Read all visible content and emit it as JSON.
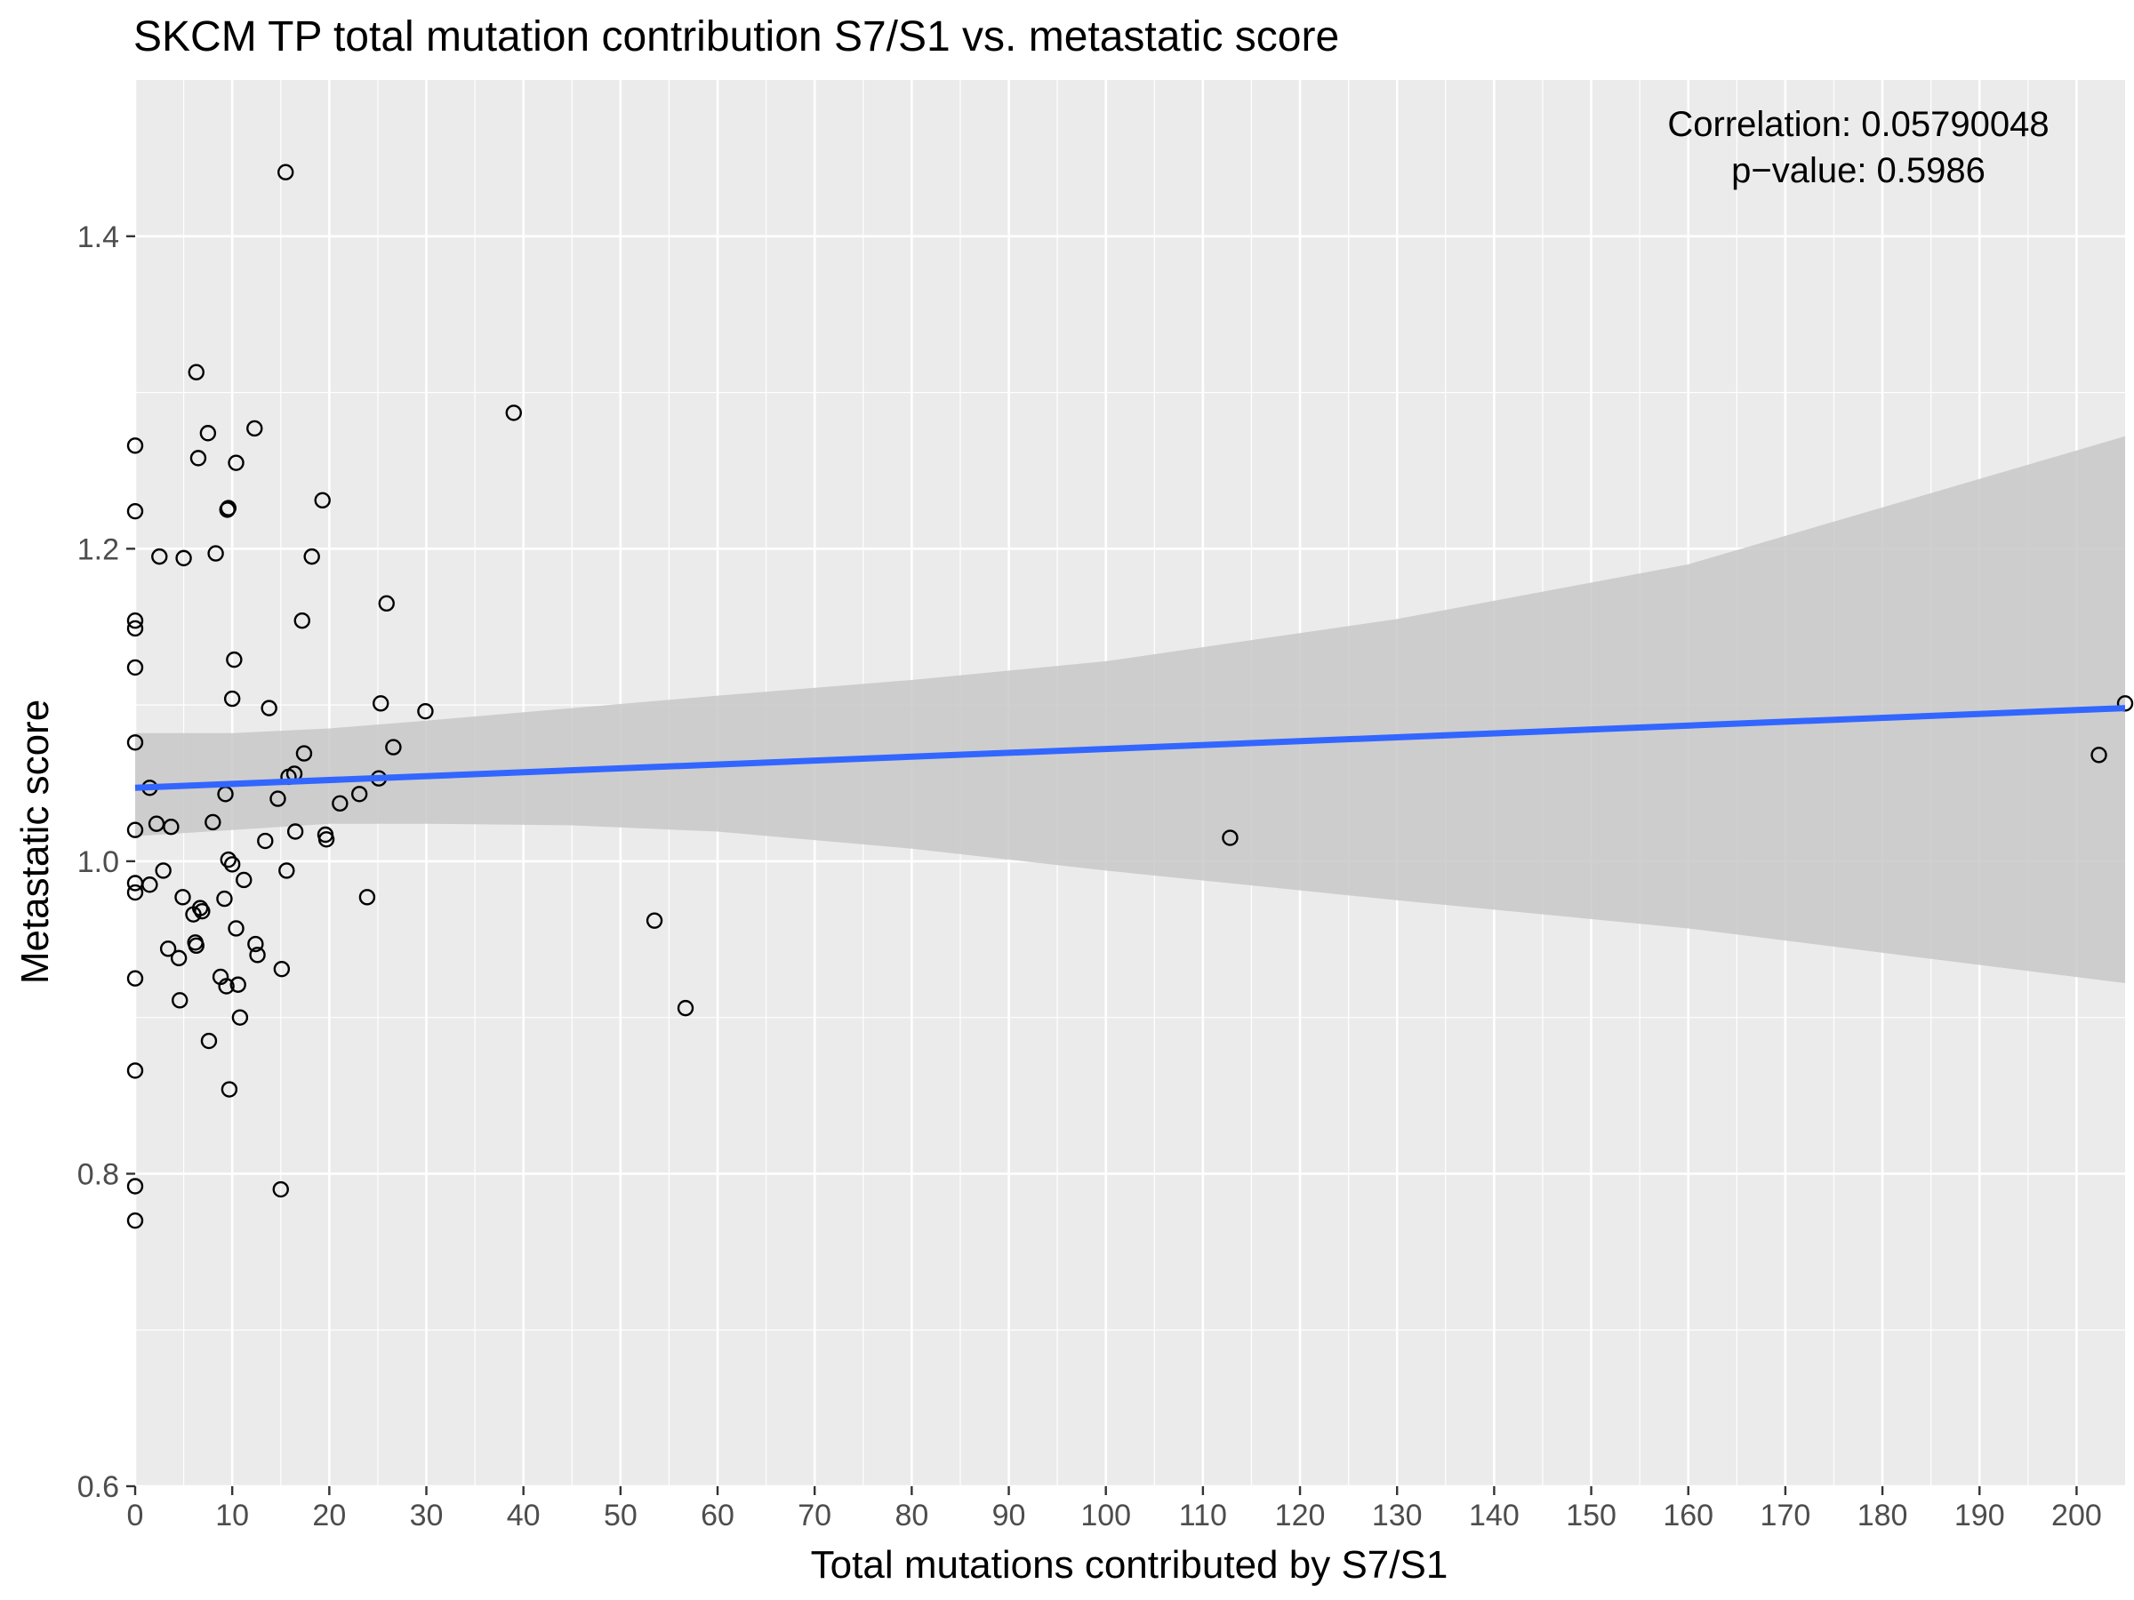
{
  "chart_data": {
    "type": "scatter",
    "title": "SKCM TP total mutation contribution S7/S1 vs. metastatic score",
    "xlabel": "Total mutations contributed by S7/S1",
    "ylabel": "Metastatic score",
    "annotation": [
      "Correlation: 0.05790048",
      "p−value: 0.5986"
    ],
    "xlim": [
      0,
      205
    ],
    "ylim": [
      0.6,
      1.5
    ],
    "x_ticks": [
      0,
      10,
      20,
      30,
      40,
      50,
      60,
      70,
      80,
      90,
      100,
      110,
      120,
      130,
      140,
      150,
      160,
      170,
      180,
      190,
      200
    ],
    "y_ticks": [
      0.6,
      0.8,
      1.0,
      1.2,
      1.4
    ],
    "grid": true,
    "colors": {
      "panel": "#ebebeb",
      "grid": "#ffffff",
      "fit_line": "#3366ff",
      "ribbon": "#c8c8c8",
      "point_stroke": "#000000"
    },
    "fit": {
      "line": [
        [
          0,
          1.047
        ],
        [
          205,
          1.098
        ]
      ],
      "ribbon_upper": [
        [
          0,
          1.082
        ],
        [
          10,
          1.082
        ],
        [
          20,
          1.085
        ],
        [
          30,
          1.09
        ],
        [
          45,
          1.098
        ],
        [
          60,
          1.106
        ],
        [
          80,
          1.116
        ],
        [
          100,
          1.128
        ],
        [
          130,
          1.155
        ],
        [
          160,
          1.19
        ],
        [
          205,
          1.272
        ]
      ],
      "ribbon_lower": [
        [
          0,
          1.016
        ],
        [
          10,
          1.02
        ],
        [
          20,
          1.024
        ],
        [
          30,
          1.024
        ],
        [
          45,
          1.023
        ],
        [
          60,
          1.019
        ],
        [
          80,
          1.008
        ],
        [
          100,
          0.994
        ],
        [
          130,
          0.975
        ],
        [
          160,
          0.957
        ],
        [
          205,
          0.922
        ]
      ]
    },
    "points": [
      {
        "x": 0,
        "y": 1.266
      },
      {
        "x": 0,
        "y": 1.224
      },
      {
        "x": 0,
        "y": 1.154
      },
      {
        "x": 0,
        "y": 1.149
      },
      {
        "x": 0,
        "y": 1.124
      },
      {
        "x": 0,
        "y": 1.076
      },
      {
        "x": 0,
        "y": 1.02
      },
      {
        "x": 0,
        "y": 0.986
      },
      {
        "x": 0,
        "y": 0.98
      },
      {
        "x": 0,
        "y": 0.925
      },
      {
        "x": 0,
        "y": 0.866
      },
      {
        "x": 0,
        "y": 0.792
      },
      {
        "x": 0,
        "y": 0.77
      },
      {
        "x": 1.5,
        "y": 1.047
      },
      {
        "x": 1.5,
        "y": 0.985
      },
      {
        "x": 2.2,
        "y": 1.024
      },
      {
        "x": 2.5,
        "y": 1.195
      },
      {
        "x": 2.9,
        "y": 0.994
      },
      {
        "x": 3.4,
        "y": 0.944
      },
      {
        "x": 3.7,
        "y": 1.022
      },
      {
        "x": 4.5,
        "y": 0.938
      },
      {
        "x": 4.6,
        "y": 0.911
      },
      {
        "x": 4.9,
        "y": 0.977
      },
      {
        "x": 5.0,
        "y": 1.194
      },
      {
        "x": 6.0,
        "y": 0.966
      },
      {
        "x": 6.2,
        "y": 0.948
      },
      {
        "x": 6.3,
        "y": 0.946
      },
      {
        "x": 6.3,
        "y": 1.313
      },
      {
        "x": 6.5,
        "y": 1.258
      },
      {
        "x": 6.7,
        "y": 0.97
      },
      {
        "x": 6.9,
        "y": 0.968
      },
      {
        "x": 7.5,
        "y": 1.274
      },
      {
        "x": 7.6,
        "y": 0.885
      },
      {
        "x": 8.0,
        "y": 1.025
      },
      {
        "x": 8.3,
        "y": 1.197
      },
      {
        "x": 8.8,
        "y": 0.926
      },
      {
        "x": 9.2,
        "y": 0.976
      },
      {
        "x": 9.3,
        "y": 1.043
      },
      {
        "x": 9.4,
        "y": 0.92
      },
      {
        "x": 9.5,
        "y": 1.225
      },
      {
        "x": 9.6,
        "y": 1.226
      },
      {
        "x": 9.6,
        "y": 1.001
      },
      {
        "x": 9.7,
        "y": 0.854
      },
      {
        "x": 10.0,
        "y": 1.104
      },
      {
        "x": 10.0,
        "y": 0.998
      },
      {
        "x": 10.2,
        "y": 1.129
      },
      {
        "x": 10.4,
        "y": 1.255
      },
      {
        "x": 10.4,
        "y": 0.957
      },
      {
        "x": 10.6,
        "y": 0.921
      },
      {
        "x": 10.8,
        "y": 0.9
      },
      {
        "x": 11.2,
        "y": 0.988
      },
      {
        "x": 12.3,
        "y": 1.277
      },
      {
        "x": 12.4,
        "y": 0.947
      },
      {
        "x": 12.6,
        "y": 0.94
      },
      {
        "x": 13.4,
        "y": 1.013
      },
      {
        "x": 13.8,
        "y": 1.098
      },
      {
        "x": 14.7,
        "y": 1.04
      },
      {
        "x": 15.0,
        "y": 0.79
      },
      {
        "x": 15.1,
        "y": 0.931
      },
      {
        "x": 15.5,
        "y": 1.441
      },
      {
        "x": 15.6,
        "y": 0.994
      },
      {
        "x": 15.8,
        "y": 1.054
      },
      {
        "x": 16.4,
        "y": 1.056
      },
      {
        "x": 16.5,
        "y": 1.019
      },
      {
        "x": 17.2,
        "y": 1.154
      },
      {
        "x": 17.4,
        "y": 1.069
      },
      {
        "x": 18.2,
        "y": 1.195
      },
      {
        "x": 19.3,
        "y": 1.231
      },
      {
        "x": 19.6,
        "y": 1.017
      },
      {
        "x": 19.7,
        "y": 1.014
      },
      {
        "x": 21.1,
        "y": 1.037
      },
      {
        "x": 23.1,
        "y": 1.043
      },
      {
        "x": 23.9,
        "y": 0.977
      },
      {
        "x": 25.1,
        "y": 1.053
      },
      {
        "x": 25.3,
        "y": 1.101
      },
      {
        "x": 25.9,
        "y": 1.165
      },
      {
        "x": 26.6,
        "y": 1.073
      },
      {
        "x": 29.9,
        "y": 1.096
      },
      {
        "x": 39.0,
        "y": 1.287
      },
      {
        "x": 53.5,
        "y": 0.962
      },
      {
        "x": 56.7,
        "y": 0.906
      },
      {
        "x": 112.8,
        "y": 1.015
      },
      {
        "x": 202.3,
        "y": 1.068
      },
      {
        "x": 205,
        "y": 1.101
      }
    ]
  }
}
